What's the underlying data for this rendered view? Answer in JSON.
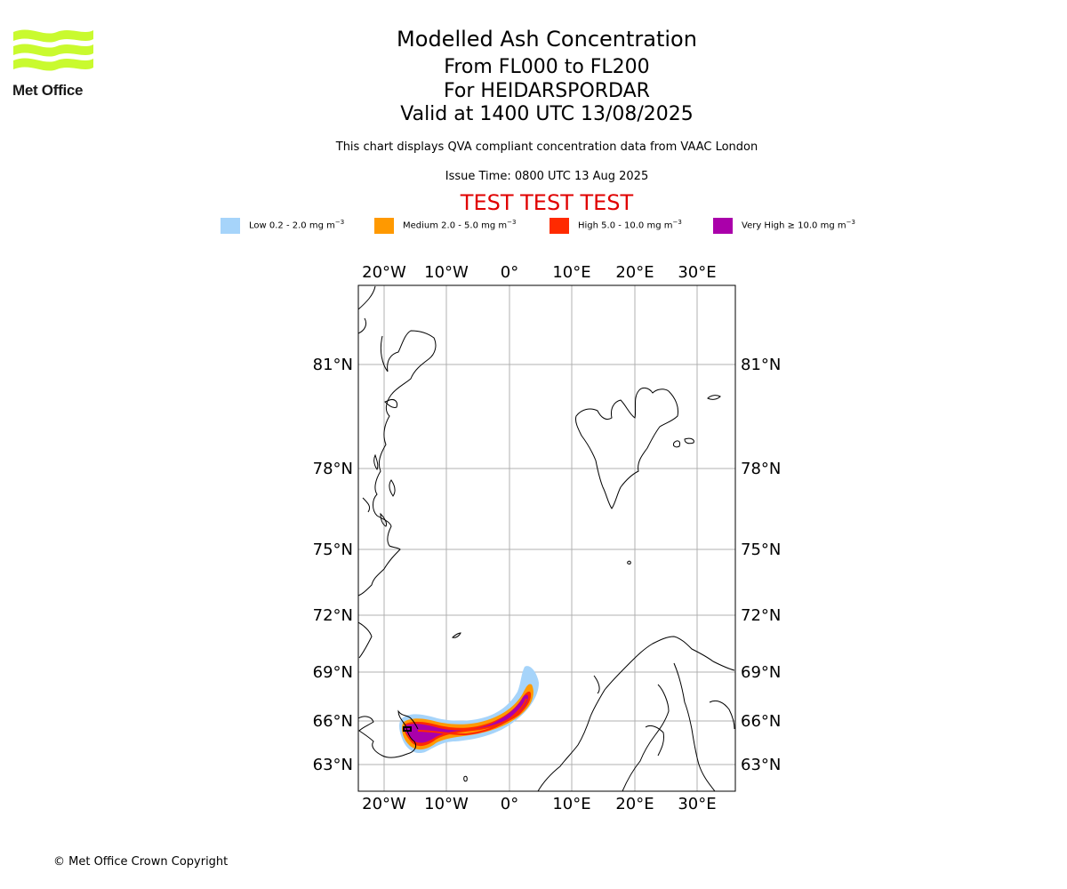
{
  "header": {
    "logo_text": "Met Office",
    "title": "Modelled Ash Concentration",
    "flight_levels": "From FL000 to FL200",
    "volcano": "For HEIDARSPORDAR",
    "valid_time": "Valid at 1400 UTC 13/08/2025",
    "description": "This chart displays QVA compliant concentration data from VAAC London",
    "issue_time": "Issue Time: 0800 UTC 13 Aug 2025",
    "test_banner": "TEST TEST TEST"
  },
  "legend": [
    {
      "label": "Low 0.2 - 2.0 mg m",
      "color": "#a6d4fa"
    },
    {
      "label": "Medium 2.0 - 5.0 mg m",
      "color": "#ff9900"
    },
    {
      "label": "High 5.0 - 10.0 mg m",
      "color": "#ff2a00"
    },
    {
      "label": "Very High  ≥  10.0 mg m",
      "color": "#aa00aa"
    }
  ],
  "legend_unit_exponent": "−3",
  "map": {
    "longitude_labels": [
      "20°W",
      "10°W",
      "0°",
      "10°E",
      "20°E",
      "30°E"
    ],
    "latitude_labels": [
      "81°N",
      "78°N",
      "75°N",
      "72°N",
      "69°N",
      "66°N",
      "63°N"
    ]
  },
  "footer": "© Met Office Crown Copyright"
}
